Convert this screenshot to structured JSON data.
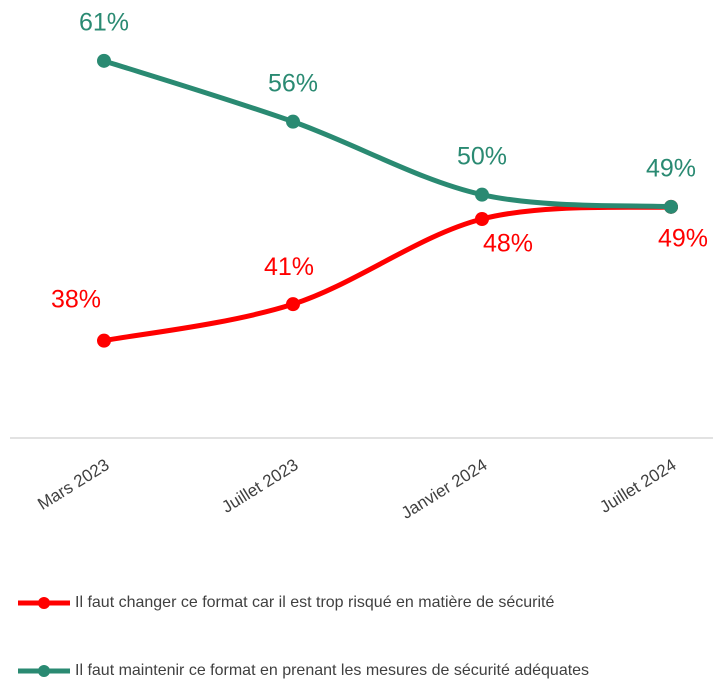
{
  "chart_data": {
    "type": "line",
    "categories": [
      "Mars 2023",
      "Juillet 2023",
      "Janvier 2024",
      "Juillet 2024"
    ],
    "series": [
      {
        "name": "Il faut changer ce format car il est trop risqué en matière de sécurité",
        "color": "#ff0000",
        "values": [
          38,
          41,
          48,
          49
        ],
        "value_labels": [
          "38%",
          "41%",
          "48%",
          "49%"
        ]
      },
      {
        "name": "Il faut maintenir ce format en prenant les mesures de sécurité adéquates",
        "color": "#2a8a72",
        "values": [
          61,
          56,
          50,
          49
        ],
        "value_labels": [
          "61%",
          "56%",
          "50%",
          "49%"
        ]
      }
    ],
    "ylim": [
      30,
      66
    ],
    "legend": "bottom"
  }
}
